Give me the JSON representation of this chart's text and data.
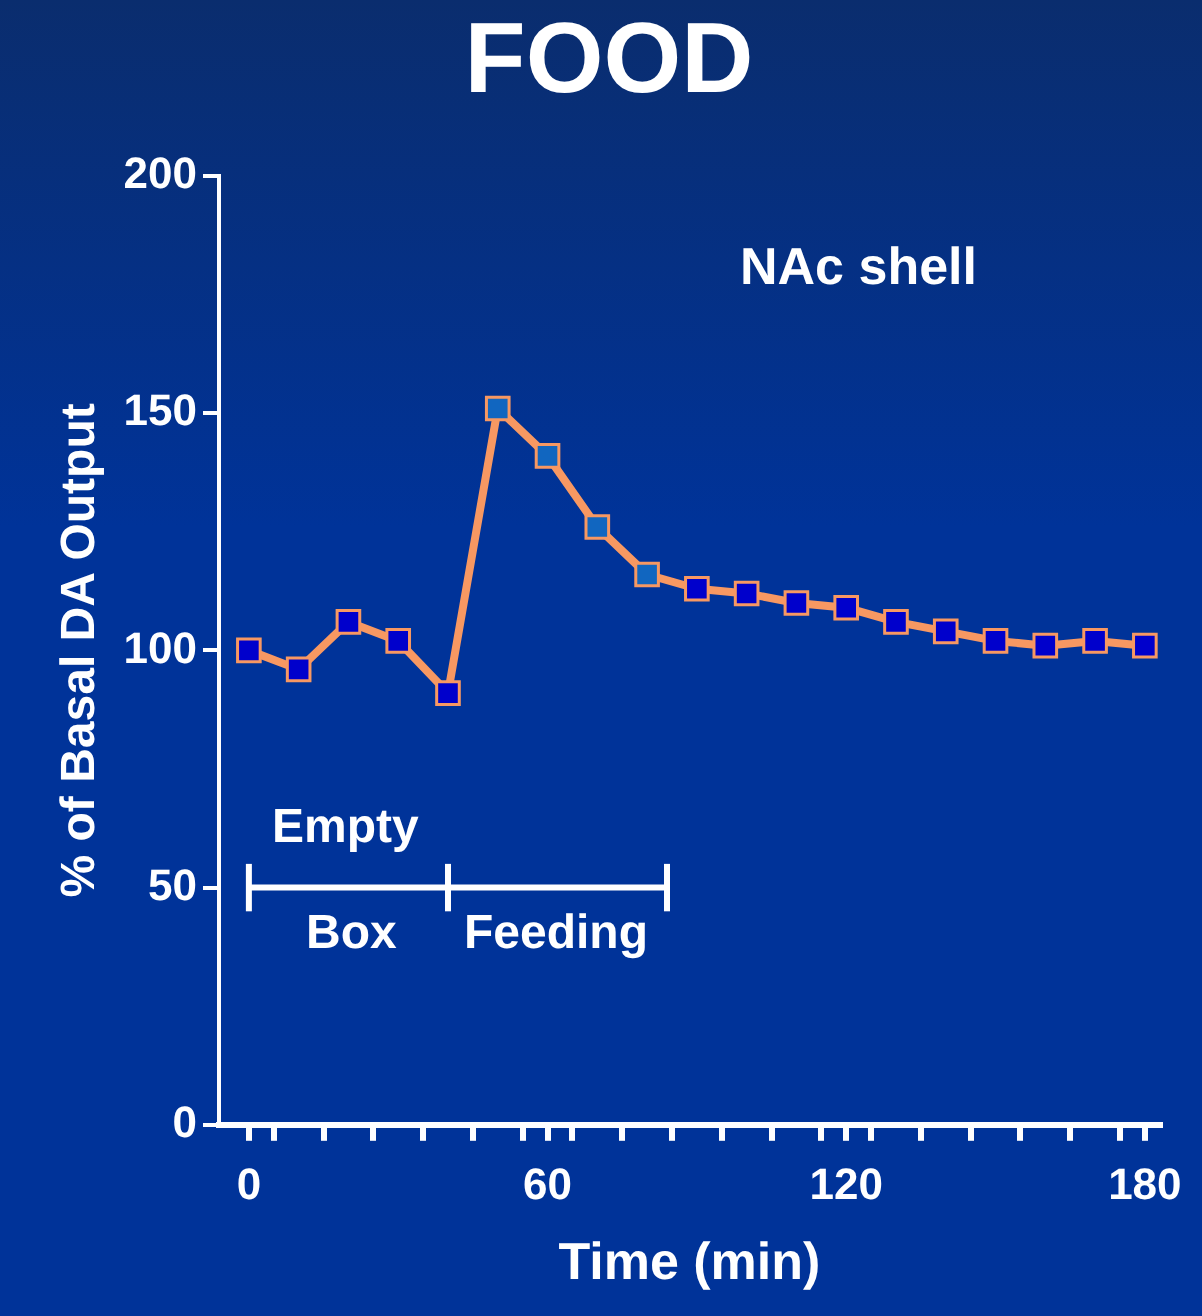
{
  "chart_data": {
    "type": "line",
    "title": "FOOD",
    "xlabel": "Time (min)",
    "ylabel": "% of Basal DA Output",
    "x": [
      0,
      10,
      20,
      30,
      40,
      50,
      60,
      70,
      80,
      90,
      100,
      110,
      120,
      130,
      140,
      150,
      160,
      170,
      180
    ],
    "series": [
      {
        "color": "#f79862",
        "colors": [
          "#0000cc",
          "#0000cc",
          "#0000cc",
          "#0000cc",
          "#0000cc",
          "#1166c0",
          "#1166c0",
          "#1166c0",
          "#1166c0",
          "#0000cc",
          "#0000cc",
          "#0000cc",
          "#0000cc",
          "#0000cc",
          "#0000cc",
          "#0000cc",
          "#0000cc",
          "#0000cc",
          "#0000cc"
        ],
        "values": [
          100,
          96,
          106,
          102,
          91,
          151,
          141,
          126,
          116,
          113,
          112,
          110,
          109,
          106,
          104,
          102,
          101,
          102,
          101
        ]
      },
      {
        "type": "line",
        "x": [
          0,
          40,
          84
        ],
        "values": [
          50,
          50,
          50
        ],
        "errors": [
          5,
          5,
          5
        ],
        "color": "#ffffff",
        "marker": "none"
      }
    ],
    "xlim": [
      -6,
      183
    ],
    "xticks": [
      0,
      {
        "value": 5,
        "label": null
      },
      {
        "value": 15,
        "label": null
      },
      {
        "value": 25,
        "label": null
      },
      {
        "value": 35,
        "label": null
      },
      {
        "value": 45,
        "label": null
      },
      {
        "value": 55,
        "label": null
      },
      60,
      {
        "value": 65,
        "label": null
      },
      {
        "value": 75,
        "label": null
      },
      {
        "value": 85,
        "label": null
      },
      {
        "value": 95,
        "label": null
      },
      {
        "value": 105,
        "label": null
      },
      {
        "value": 115,
        "label": null
      },
      120,
      {
        "value": 125,
        "label": null
      },
      {
        "value": 135,
        "label": null
      },
      {
        "value": 145,
        "label": null
      },
      {
        "value": 155,
        "label": null
      },
      {
        "value": 165,
        "label": null
      },
      {
        "value": 175,
        "label": null
      },
      180
    ],
    "ylim": [
      0,
      200
    ],
    "yticks": [
      0,
      50,
      100,
      150,
      200
    ],
    "marker": "square",
    "line_style": "solid",
    "grid": false,
    "legend": false,
    "annotations": [
      "NAc shell",
      "Empty",
      "Box",
      "Feeding"
    ]
  }
}
